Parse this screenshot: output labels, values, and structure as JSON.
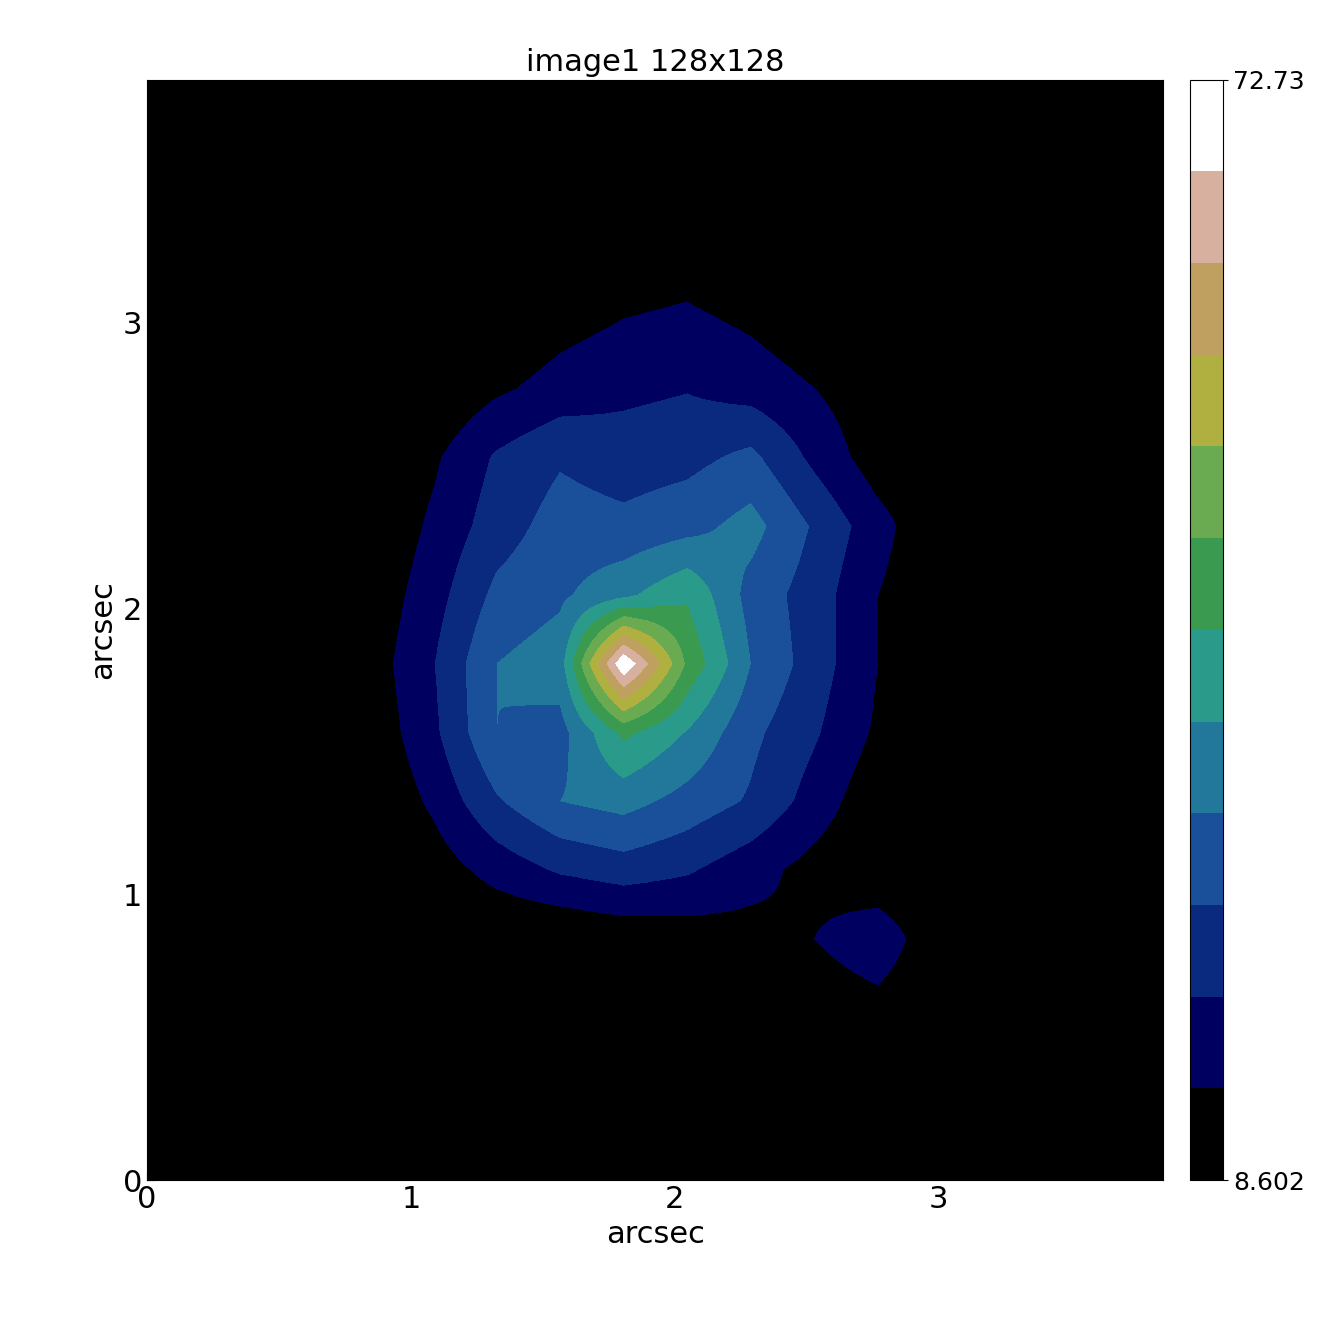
{
  "chart_data": {
    "type": "heatmap",
    "title": "image1 128x128",
    "x_label": "arcsec",
    "y_label": "arcsec",
    "xlim": [
      0,
      3.85
    ],
    "ylim": [
      0,
      3.85
    ],
    "xticks": [
      0,
      1,
      2,
      3
    ],
    "yticks": [
      0,
      1,
      2,
      3
    ],
    "cells": [
      [
        8.602,
        8.602,
        8.602,
        8.602,
        8.602,
        8.602,
        8.602,
        8.602,
        8.602,
        8.602,
        8.602,
        8.602,
        8.602,
        8.602,
        8.602,
        8.602
      ],
      [
        8.602,
        8.602,
        8.602,
        8.602,
        8.602,
        8.602,
        8.602,
        8.602,
        8.602,
        8.602,
        8.602,
        8.602,
        8.602,
        8.602,
        8.602,
        8.602
      ],
      [
        8.602,
        8.602,
        8.602,
        8.602,
        8.602,
        8.602,
        8.602,
        10,
        11,
        8.602,
        8.602,
        8.602,
        8.602,
        8.602,
        8.602,
        8.602
      ],
      [
        8.602,
        8.602,
        8.602,
        8.602,
        8.602,
        9,
        12,
        14,
        15,
        13,
        10,
        8.602,
        8.602,
        8.602,
        8.602,
        8.602
      ],
      [
        8.602,
        8.602,
        8.602,
        8.602,
        9,
        13,
        16,
        18,
        19,
        17,
        14,
        10,
        8.602,
        8.602,
        8.602,
        8.602
      ],
      [
        8.602,
        9,
        8.602,
        8.602,
        13,
        20,
        24,
        22,
        23,
        26,
        18,
        11,
        8.602,
        8.602,
        8.602,
        8.602
      ],
      [
        8.602,
        8.602,
        8.602,
        8.602,
        15,
        22,
        27,
        26,
        28,
        32,
        24,
        16,
        9,
        8.602,
        8.602,
        8.602
      ],
      [
        9,
        8.602,
        8.602,
        10,
        17,
        26,
        29,
        34,
        40,
        28,
        22,
        14,
        9,
        8.602,
        8.602,
        8.602
      ],
      [
        8.602,
        8.602,
        8.602,
        11,
        19,
        30,
        33,
        72.73,
        45,
        30,
        22,
        14,
        9,
        8.602,
        8.602,
        8.602
      ],
      [
        8.602,
        8.602,
        8.602,
        10,
        18,
        30,
        28,
        42,
        35,
        26,
        20,
        13,
        8.602,
        8.602,
        8.602,
        8.602
      ],
      [
        8.602,
        8.602,
        8.602,
        8.602,
        15,
        24,
        30,
        32,
        28,
        24,
        17,
        10,
        8.602,
        8.602,
        8.602,
        8.602
      ],
      [
        8.602,
        8.602,
        8.602,
        8.602,
        11,
        16,
        20,
        22,
        20,
        16,
        12,
        9,
        8.602,
        8.602,
        8.602,
        8.602
      ],
      [
        8.602,
        8.602,
        8.602,
        8.602,
        8.602,
        8.602,
        8.602,
        10,
        11,
        12,
        14,
        18,
        9,
        8.602,
        8.602,
        8.602
      ],
      [
        8.602,
        8.602,
        8.602,
        8.602,
        8.602,
        8.602,
        8.602,
        8.602,
        8.602,
        8.602,
        10,
        12,
        8.602,
        8.602,
        8.602,
        8.602
      ],
      [
        8.602,
        8.602,
        8.602,
        8.602,
        8.602,
        8.602,
        8.602,
        8.602,
        8.602,
        8.602,
        8.602,
        8.602,
        8.602,
        8.602,
        8.602,
        8.602
      ],
      [
        8.602,
        8.602,
        8.602,
        8.602,
        8.602,
        8.602,
        8.602,
        8.602,
        8.602,
        8.602,
        8.602,
        8.602,
        8.602,
        8.602,
        8.602,
        8.602
      ]
    ],
    "colorbar": {
      "range": [
        8.602,
        72.73
      ],
      "ticks": [
        8.602,
        72.73
      ]
    }
  }
}
